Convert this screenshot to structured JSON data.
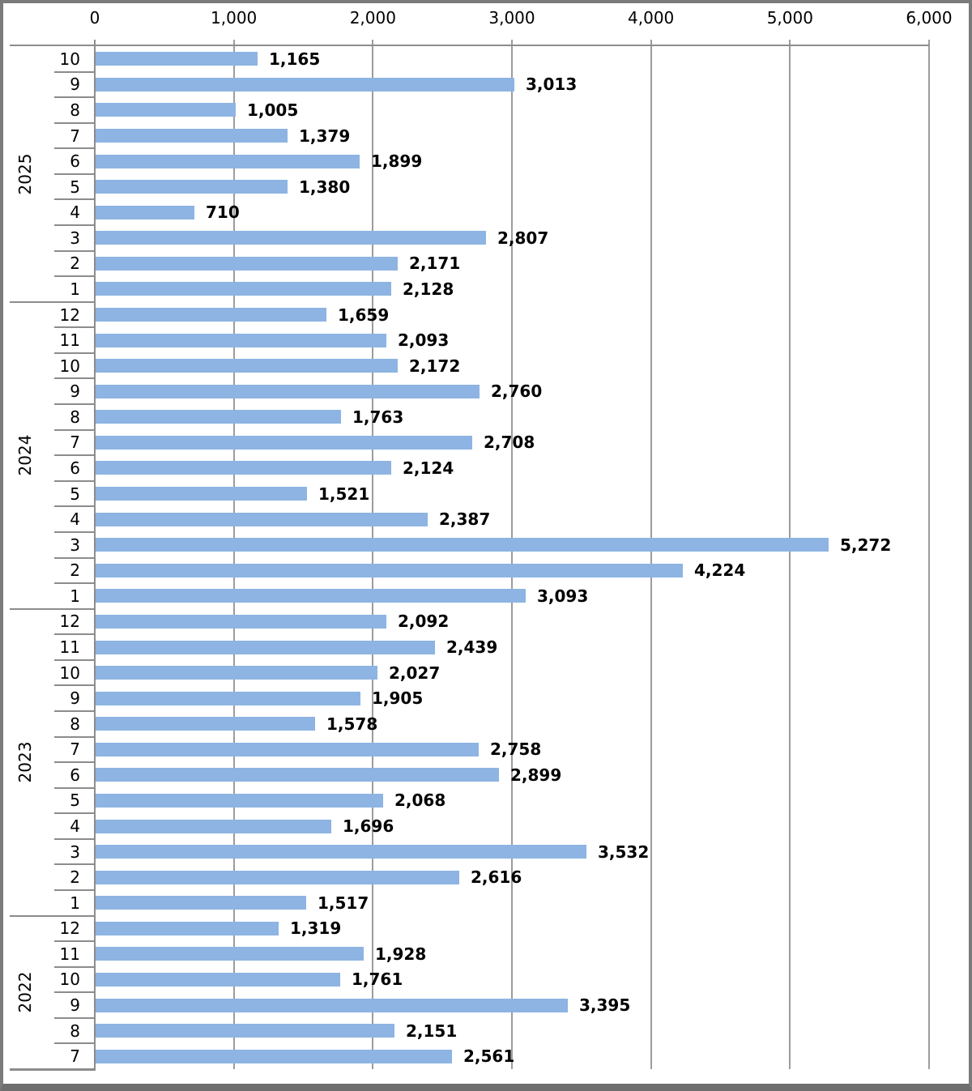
{
  "chart_data": {
    "type": "bar",
    "orientation": "horizontal",
    "title": "",
    "xlabel": "",
    "ylabel": "",
    "legend": "none",
    "grid": "vertical",
    "bar_color": "#8db4e2",
    "gridline_color": "#9c9c9c",
    "axis_line_color": "#8c8c8c",
    "value_axis": {
      "position": "top",
      "min": 0,
      "max": 6000,
      "tick_step": 1000,
      "tick_labels": [
        "0",
        "1,000",
        "2,000",
        "3,000",
        "4,000",
        "5,000",
        "6,000"
      ]
    },
    "category_axis": {
      "outer_level": "year",
      "inner_level": "month"
    },
    "groups": [
      {
        "year": "2025",
        "rows": [
          {
            "month": "10",
            "value": 1165,
            "label": "1,165"
          },
          {
            "month": "9",
            "value": 3013,
            "label": "3,013"
          },
          {
            "month": "8",
            "value": 1005,
            "label": "1,005"
          },
          {
            "month": "7",
            "value": 1379,
            "label": "1,379"
          },
          {
            "month": "6",
            "value": 1899,
            "label": "1,899"
          },
          {
            "month": "5",
            "value": 1380,
            "label": "1,380"
          },
          {
            "month": "4",
            "value": 710,
            "label": "710"
          },
          {
            "month": "3",
            "value": 2807,
            "label": "2,807"
          },
          {
            "month": "2",
            "value": 2171,
            "label": "2,171"
          },
          {
            "month": "1",
            "value": 2128,
            "label": "2,128"
          }
        ]
      },
      {
        "year": "2024",
        "rows": [
          {
            "month": "12",
            "value": 1659,
            "label": "1,659"
          },
          {
            "month": "11",
            "value": 2093,
            "label": "2,093"
          },
          {
            "month": "10",
            "value": 2172,
            "label": "2,172"
          },
          {
            "month": "9",
            "value": 2760,
            "label": "2,760"
          },
          {
            "month": "8",
            "value": 1763,
            "label": "1,763"
          },
          {
            "month": "7",
            "value": 2708,
            "label": "2,708"
          },
          {
            "month": "6",
            "value": 2124,
            "label": "2,124"
          },
          {
            "month": "5",
            "value": 1521,
            "label": "1,521"
          },
          {
            "month": "4",
            "value": 2387,
            "label": "2,387"
          },
          {
            "month": "3",
            "value": 5272,
            "label": "5,272"
          },
          {
            "month": "2",
            "value": 4224,
            "label": "4,224"
          },
          {
            "month": "1",
            "value": 3093,
            "label": "3,093"
          }
        ]
      },
      {
        "year": "2023",
        "rows": [
          {
            "month": "12",
            "value": 2092,
            "label": "2,092"
          },
          {
            "month": "11",
            "value": 2439,
            "label": "2,439"
          },
          {
            "month": "10",
            "value": 2027,
            "label": "2,027"
          },
          {
            "month": "9",
            "value": 1905,
            "label": "1,905"
          },
          {
            "month": "8",
            "value": 1578,
            "label": "1,578"
          },
          {
            "month": "7",
            "value": 2758,
            "label": "2,758"
          },
          {
            "month": "6",
            "value": 2899,
            "label": "2,899"
          },
          {
            "month": "5",
            "value": 2068,
            "label": "2,068"
          },
          {
            "month": "4",
            "value": 1696,
            "label": "1,696"
          },
          {
            "month": "3",
            "value": 3532,
            "label": "3,532"
          },
          {
            "month": "2",
            "value": 2616,
            "label": "2,616"
          },
          {
            "month": "1",
            "value": 1517,
            "label": "1,517"
          }
        ]
      },
      {
        "year": "2022",
        "rows": [
          {
            "month": "12",
            "value": 1319,
            "label": "1,319"
          },
          {
            "month": "11",
            "value": 1928,
            "label": "1,928"
          },
          {
            "month": "10",
            "value": 1761,
            "label": "1,761"
          },
          {
            "month": "9",
            "value": 3395,
            "label": "3,395"
          },
          {
            "month": "8",
            "value": 2151,
            "label": "2,151"
          },
          {
            "month": "7",
            "value": 2561,
            "label": "2,561"
          }
        ]
      }
    ]
  }
}
